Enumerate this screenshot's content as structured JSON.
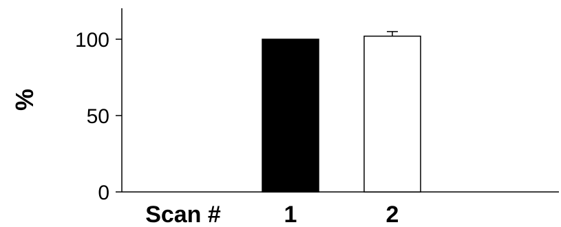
{
  "chart_data": {
    "type": "bar",
    "title": "",
    "xlabel": "Scan #",
    "ylabel": "%",
    "categories": [
      "1",
      "2"
    ],
    "values": [
      100,
      102
    ],
    "error": [
      0,
      3
    ],
    "bar_colors": [
      "#000000",
      "#ffffff"
    ],
    "bar_edge_color": "#000000",
    "ylim": [
      0,
      120
    ],
    "yticks": [
      0,
      50,
      100
    ],
    "ytick_labels": [
      "0",
      "50",
      "100"
    ],
    "grid": false,
    "legend": "none"
  }
}
